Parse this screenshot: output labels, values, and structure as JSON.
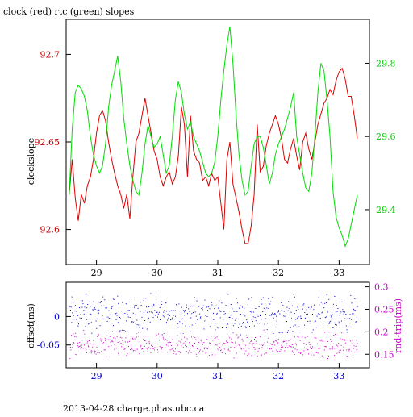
{
  "chart_data": [
    {
      "type": "line",
      "title": "clock (red) rtc (green) slopes",
      "ylabel": "clockslope",
      "ylabel_right": "",
      "xlim": [
        28.5,
        33.5
      ],
      "ylim": [
        92.58,
        92.72
      ],
      "ylim_right": [
        29.25,
        29.92
      ],
      "x_ticks": [
        29,
        30,
        31,
        32,
        33
      ],
      "y_ticks": [
        92.6,
        92.65,
        92.7
      ],
      "y_ticks_right": [
        29.4,
        29.6,
        29.8
      ],
      "grid": false,
      "colors": {
        "left_axis": "#cc0000",
        "right_axis": "#00cc00",
        "x_axis": "#000000"
      },
      "series": [
        {
          "name": "clock",
          "axis": "left",
          "color": "#dd0000",
          "x": [
            28.55,
            28.6,
            28.65,
            28.7,
            28.75,
            28.8,
            28.85,
            28.9,
            28.95,
            29.0,
            29.05,
            29.1,
            29.15,
            29.2,
            29.25,
            29.3,
            29.35,
            29.4,
            29.45,
            29.5,
            29.55,
            29.6,
            29.65,
            29.7,
            29.75,
            29.8,
            29.85,
            29.9,
            29.95,
            30.0,
            30.05,
            30.1,
            30.15,
            30.2,
            30.25,
            30.3,
            30.35,
            30.4,
            30.45,
            30.5,
            30.55,
            30.6,
            30.65,
            30.7,
            30.75,
            30.8,
            30.85,
            30.9,
            30.95,
            31.0,
            31.05,
            31.1,
            31.15,
            31.2,
            31.25,
            31.3,
            31.35,
            31.4,
            31.45,
            31.5,
            31.55,
            31.6,
            31.65,
            31.7,
            31.75,
            31.8,
            31.85,
            31.9,
            31.95,
            32.0,
            32.05,
            32.1,
            32.15,
            32.2,
            32.25,
            32.3,
            32.35,
            32.4,
            32.45,
            32.5,
            32.55,
            32.6,
            32.65,
            32.7,
            32.75,
            32.8,
            32.85,
            32.9,
            32.95,
            33.0,
            33.05,
            33.1,
            33.15,
            33.2,
            33.25,
            33.3
          ],
          "values": [
            92.62,
            92.64,
            92.618,
            92.605,
            92.62,
            92.615,
            92.625,
            92.63,
            92.64,
            92.655,
            92.665,
            92.668,
            92.662,
            92.65,
            92.64,
            92.632,
            92.625,
            92.62,
            92.612,
            92.62,
            92.606,
            92.63,
            92.65,
            92.655,
            92.665,
            92.675,
            92.665,
            92.655,
            92.645,
            92.64,
            92.63,
            92.625,
            92.63,
            92.633,
            92.626,
            92.63,
            92.642,
            92.67,
            92.66,
            92.63,
            92.665,
            92.645,
            92.64,
            92.638,
            92.628,
            92.63,
            92.625,
            92.632,
            92.628,
            92.63,
            92.615,
            92.6,
            92.64,
            92.65,
            92.626,
            92.618,
            92.61,
            92.6,
            92.592,
            92.592,
            92.602,
            92.62,
            92.66,
            92.633,
            92.636,
            92.648,
            92.655,
            92.66,
            92.665,
            92.66,
            92.652,
            92.64,
            92.638,
            92.646,
            92.652,
            92.642,
            92.634,
            92.65,
            92.655,
            92.646,
            92.64,
            92.65,
            92.66,
            92.666,
            92.672,
            92.675,
            92.68,
            92.677,
            92.685,
            92.69,
            92.692,
            92.686,
            92.676,
            92.676,
            92.665,
            92.652
          ]
        },
        {
          "name": "rtc",
          "axis": "right",
          "color": "#00dd00",
          "x": [
            28.55,
            28.6,
            28.65,
            28.7,
            28.75,
            28.8,
            28.85,
            28.9,
            28.95,
            29.0,
            29.05,
            29.1,
            29.15,
            29.2,
            29.25,
            29.3,
            29.35,
            29.4,
            29.45,
            29.5,
            29.55,
            29.6,
            29.65,
            29.7,
            29.75,
            29.8,
            29.85,
            29.9,
            29.95,
            30.0,
            30.05,
            30.1,
            30.15,
            30.2,
            30.25,
            30.3,
            30.35,
            30.4,
            30.45,
            30.5,
            30.55,
            30.6,
            30.65,
            30.7,
            30.75,
            30.8,
            30.85,
            30.9,
            30.95,
            31.0,
            31.05,
            31.1,
            31.15,
            31.2,
            31.25,
            31.3,
            31.35,
            31.4,
            31.45,
            31.5,
            31.55,
            31.6,
            31.65,
            31.7,
            31.75,
            31.8,
            31.85,
            31.9,
            31.95,
            32.0,
            32.05,
            32.1,
            32.15,
            32.2,
            32.25,
            32.3,
            32.35,
            32.4,
            32.45,
            32.5,
            32.55,
            32.6,
            32.65,
            32.7,
            32.75,
            32.8,
            32.85,
            32.9,
            32.95,
            33.0,
            33.05,
            33.1,
            33.15,
            33.2,
            33.25,
            33.3
          ],
          "values": [
            29.44,
            29.62,
            29.72,
            29.74,
            29.73,
            29.71,
            29.67,
            29.6,
            29.55,
            29.52,
            29.5,
            29.52,
            29.58,
            29.68,
            29.74,
            29.78,
            29.82,
            29.75,
            29.65,
            29.58,
            29.52,
            29.48,
            29.45,
            29.44,
            29.5,
            29.58,
            29.63,
            29.6,
            29.57,
            29.58,
            29.6,
            29.55,
            29.5,
            29.52,
            29.6,
            29.7,
            29.75,
            29.72,
            29.66,
            29.62,
            29.64,
            29.6,
            29.58,
            29.56,
            29.53,
            29.5,
            29.49,
            29.5,
            29.53,
            29.6,
            29.7,
            29.78,
            29.85,
            29.9,
            29.8,
            29.66,
            29.55,
            29.48,
            29.44,
            29.45,
            29.52,
            29.58,
            29.6,
            29.6,
            29.57,
            29.52,
            29.47,
            29.5,
            29.55,
            29.58,
            29.6,
            29.62,
            29.65,
            29.68,
            29.72,
            29.6,
            29.55,
            29.5,
            29.46,
            29.45,
            29.5,
            29.6,
            29.72,
            29.8,
            29.78,
            29.7,
            29.6,
            29.45,
            29.38,
            29.35,
            29.33,
            29.3,
            29.32,
            29.36,
            29.4,
            29.44
          ]
        }
      ]
    },
    {
      "type": "scatter",
      "title": "",
      "xlabel": "",
      "ylabel": "offset(ms)",
      "ylabel_right": "rnd-trip(ms)",
      "xlim": [
        28.5,
        33.5
      ],
      "ylim": [
        -0.09,
        0.06
      ],
      "ylim_right": [
        0.12,
        0.31
      ],
      "x_ticks": [
        29,
        30,
        31,
        32,
        33
      ],
      "y_ticks": [
        "-0.05",
        "0"
      ],
      "y_ticks_right": [
        0.15,
        0.2,
        0.25,
        0.3
      ],
      "grid": false,
      "colors": {
        "offset": "#0000cc",
        "round_trip": "#cc00cc"
      },
      "series": [
        {
          "name": "offset",
          "axis": "left",
          "color": "#0000cc",
          "y_band": [
            -0.04,
            0.05
          ]
        },
        {
          "name": "rnd-trip",
          "axis": "right",
          "color": "#cc00cc",
          "y_band": [
            0.13,
            0.21
          ]
        }
      ]
    }
  ],
  "footer": {
    "text": "2013-04-28 charge.phas.ubc.ca"
  }
}
